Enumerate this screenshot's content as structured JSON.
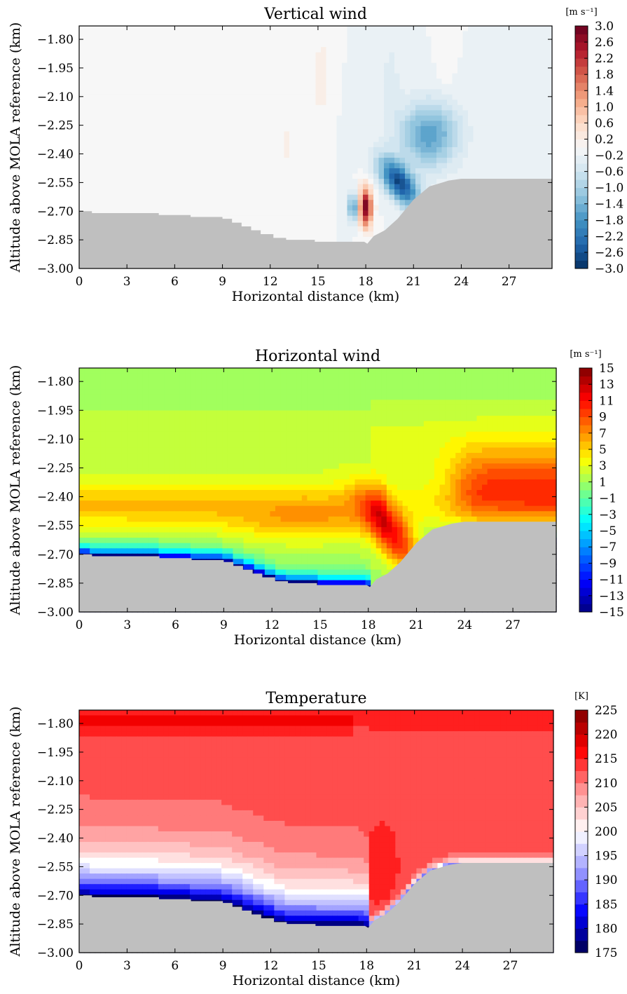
{
  "chart_data": [
    {
      "type": "heatmap",
      "title": "Vertical wind",
      "xlabel": "Horizontal distance (km)",
      "ylabel": "Altitude above MOLA reference (km)",
      "xlim": [
        0,
        29.7
      ],
      "ylim": [
        -3.0,
        -1.73
      ],
      "x_ticks": [
        "0",
        "3",
        "6",
        "9",
        "12",
        "15",
        "18",
        "21",
        "24",
        "27"
      ],
      "y_ticks": [
        "-1.80",
        "-1.95",
        "-2.10",
        "-2.25",
        "-2.40",
        "-2.55",
        "-2.70",
        "-2.85",
        "-3.00"
      ],
      "colorbar_unit": "[m s⁻¹]",
      "colorbar_ticks": [
        "3.0",
        "2.6",
        "2.2",
        "1.8",
        "1.4",
        "1.0",
        "0.6",
        "0.2",
        "-0.2",
        "-0.6",
        "-1.0",
        "-1.4",
        "-1.8",
        "-2.2",
        "-2.6",
        "-3.0"
      ],
      "colormap": [
        "#053061",
        "#2166ac",
        "#4393c3",
        "#92c5de",
        "#d1e5f0",
        "#f7f7f7",
        "#fddbc7",
        "#f4a582",
        "#d6604d",
        "#b2182b",
        "#67001f"
      ],
      "value_range": [
        -3.0,
        3.0
      ],
      "background_value": -0.1,
      "features": [
        {
          "kind": "updraft",
          "x": 18.0,
          "y": -2.68,
          "peak": 3.0
        },
        {
          "kind": "downdraft",
          "x": 17.2,
          "y": -2.68,
          "peak": -1.7
        },
        {
          "kind": "downdraft",
          "x": 20.4,
          "y": -2.6,
          "peak": -2.6
        },
        {
          "kind": "weak updraft",
          "x": 15.2,
          "y": -2.0,
          "peak": 0.3
        }
      ],
      "terrain_color": "#bfbfbf"
    },
    {
      "type": "heatmap",
      "title": "Horizontal wind",
      "xlabel": "Horizontal distance (km)",
      "ylabel": "Altitude above MOLA reference (km)",
      "xlim": [
        0,
        29.7
      ],
      "ylim": [
        -3.0,
        -1.73
      ],
      "x_ticks": [
        "0",
        "3",
        "6",
        "9",
        "12",
        "15",
        "18",
        "21",
        "24",
        "27"
      ],
      "y_ticks": [
        "-1.80",
        "-1.95",
        "-2.10",
        "-2.25",
        "-2.40",
        "-2.55",
        "-2.70",
        "-2.85",
        "-3.00"
      ],
      "colorbar_unit": "[m s⁻¹]",
      "colorbar_ticks": [
        "15",
        "13",
        "11",
        "9",
        "7",
        "5",
        "3",
        "1",
        "-1",
        "-3",
        "-5",
        "-7",
        "-9",
        "-11",
        "-13",
        "-15"
      ],
      "colormap": [
        "#00007f",
        "#0000ff",
        "#007fff",
        "#00ffff",
        "#7fff7f",
        "#ffff00",
        "#ff7f00",
        "#ff0000",
        "#7f0000"
      ],
      "value_range": [
        -15,
        15
      ],
      "background_value": 1.5,
      "features": [
        {
          "kind": "jet",
          "x": 20.0,
          "y": -2.68,
          "peak": 14
        },
        {
          "kind": "upper jet",
          "x": 27.0,
          "y": -2.3,
          "peak": 9
        },
        {
          "kind": "near-surface flow",
          "x": 16.0,
          "y": -2.87,
          "peak": -14
        }
      ],
      "terrain_color": "#bfbfbf"
    },
    {
      "type": "heatmap",
      "title": "Temperature",
      "xlabel": "Horizontal distance (km)",
      "ylabel": "Altitude above MOLA reference (km)",
      "xlim": [
        0,
        29.7
      ],
      "ylim": [
        -3.0,
        -1.73
      ],
      "x_ticks": [
        "0",
        "3",
        "6",
        "9",
        "12",
        "15",
        "18",
        "21",
        "24",
        "27"
      ],
      "y_ticks": [
        "-1.80",
        "-1.95",
        "-2.10",
        "-2.25",
        "-2.40",
        "-2.55",
        "-2.70",
        "-2.85",
        "-3.00"
      ],
      "colorbar_unit": "[K]",
      "colorbar_ticks": [
        "225",
        "220",
        "215",
        "210",
        "205",
        "200",
        "195",
        "190",
        "185",
        "180",
        "175"
      ],
      "colormap": [
        "#00004c",
        "#0000ff",
        "#9999ff",
        "#ffffff",
        "#ff9999",
        "#ff0000",
        "#7f0000"
      ],
      "value_range": [
        175,
        225
      ],
      "background_value": 213,
      "features": [
        {
          "kind": "surface cold layer",
          "x": 12.0,
          "y": -2.8,
          "peak": 182
        },
        {
          "kind": "warm cap",
          "x": 10.0,
          "y": -1.78,
          "peak": 217
        }
      ],
      "terrain_color": "#bfbfbf"
    }
  ]
}
